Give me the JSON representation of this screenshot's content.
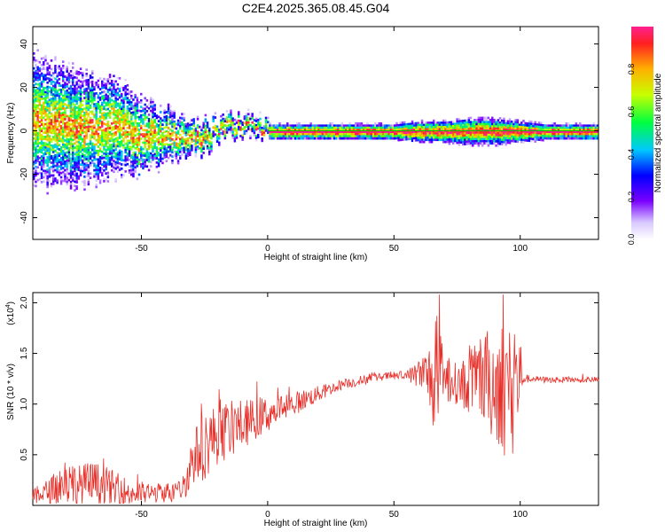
{
  "title": "C2E4.2025.365.08.45.G04",
  "colorbar": {
    "label": "Normalized spectral amplitude",
    "ticks": [
      "0.0",
      "0.2",
      "0.4",
      "0.6",
      "0.8"
    ],
    "tick_values": [
      0.0,
      0.2,
      0.4,
      0.6,
      0.8
    ],
    "range": [
      0,
      1
    ]
  },
  "chart_data": [
    {
      "type": "heatmap",
      "xlabel": "Height of straight line (km)",
      "ylabel": "Frequency (Hz)",
      "xlim": [
        -93,
        131
      ],
      "ylim": [
        -50,
        48
      ],
      "xticks": [
        -50,
        0,
        50,
        100
      ],
      "yticks": [
        -40,
        -20,
        0,
        20,
        40
      ],
      "xtick_labels": [
        "-50",
        "0",
        "50",
        "100"
      ],
      "ytick_labels": [
        "-40",
        "-20",
        "0",
        "20",
        "40"
      ],
      "ridge": {
        "x": [
          -93,
          -80,
          -70,
          -60,
          -50,
          -45,
          -40,
          -35,
          -30,
          -25,
          -20,
          -15,
          -10,
          -5,
          0,
          5,
          10,
          20,
          30,
          40,
          50,
          60,
          70,
          80,
          90,
          100,
          110,
          120,
          131
        ],
        "frequency": [
          5,
          3,
          2,
          2,
          -3,
          -2,
          -2,
          -3,
          -3,
          -2,
          1,
          2,
          2,
          2,
          0,
          0,
          0,
          0,
          0,
          0,
          0,
          0,
          0,
          0,
          0,
          0,
          0,
          0,
          0
        ],
        "spread": [
          12,
          11,
          10,
          9,
          7,
          6,
          5,
          4,
          3,
          3,
          2,
          2,
          2,
          2,
          1.5,
          1.5,
          1.5,
          1.5,
          1.5,
          1.5,
          1.5,
          2,
          2,
          2.5,
          2.5,
          2,
          1.5,
          1.5,
          1.5
        ]
      }
    },
    {
      "type": "line",
      "xlabel": "Height of straight line (km)",
      "ylabel": "SNR (10 * v/v)",
      "yscale_label": "(x10",
      "yscale_exp": "4",
      "yscale_close": ")",
      "xlim": [
        -93,
        131
      ],
      "ylim": [
        0.0,
        2.1
      ],
      "xticks": [
        -50,
        0,
        50,
        100
      ],
      "yticks": [
        0.5,
        1.0,
        1.5,
        2.0
      ],
      "xtick_labels": [
        "-50",
        "0",
        "50",
        "100"
      ],
      "ytick_labels": [
        "0.5",
        "1.0",
        "1.5",
        "2.0"
      ],
      "color": "#e8302a",
      "series": [
        {
          "x": [
            -93,
            -85,
            -80,
            -75,
            -70,
            -65,
            -60,
            -55,
            -50,
            -45,
            -40,
            -35,
            -33,
            -30,
            -25,
            -20,
            -15,
            -10,
            -5,
            0,
            5,
            10,
            15,
            20,
            25,
            30,
            35,
            40,
            45,
            50,
            55,
            60,
            65,
            67,
            70,
            75,
            80,
            85,
            90,
            95,
            97,
            100,
            101,
            105,
            110,
            115,
            120,
            125,
            131
          ],
          "y": [
            0.08,
            0.15,
            0.25,
            0.2,
            0.22,
            0.2,
            0.15,
            0.12,
            0.12,
            0.12,
            0.13,
            0.15,
            0.2,
            0.45,
            0.6,
            0.7,
            0.75,
            0.8,
            0.85,
            0.9,
            0.95,
            1.0,
            1.05,
            1.1,
            1.15,
            1.2,
            1.22,
            1.25,
            1.27,
            1.28,
            1.28,
            1.3,
            1.25,
            1.2,
            1.25,
            1.2,
            1.2,
            1.25,
            1.2,
            1.2,
            1.25,
            1.25,
            1.25,
            1.25,
            1.24,
            1.24,
            1.24,
            1.24,
            1.24
          ],
          "noise": [
            0.08,
            0.15,
            0.25,
            0.2,
            0.22,
            0.2,
            0.18,
            0.15,
            0.12,
            0.1,
            0.1,
            0.1,
            0.15,
            0.25,
            0.35,
            0.3,
            0.28,
            0.25,
            0.2,
            0.18,
            0.15,
            0.12,
            0.1,
            0.08,
            0.06,
            0.05,
            0.05,
            0.05,
            0.04,
            0.04,
            0.05,
            0.15,
            0.4,
            0.7,
            0.25,
            0.2,
            0.3,
            0.45,
            0.6,
            0.7,
            0.8,
            0.5,
            0.05,
            0.03,
            0.03,
            0.03,
            0.03,
            0.03,
            0.03
          ]
        }
      ]
    }
  ]
}
